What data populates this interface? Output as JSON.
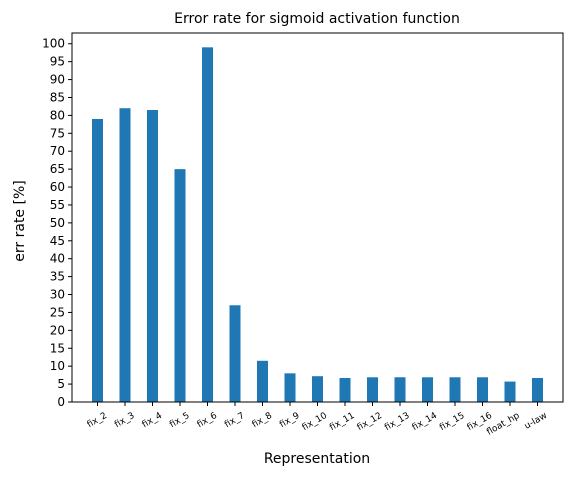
{
  "chart_data": {
    "type": "bar",
    "title": "Error rate for sigmoid activation function",
    "xlabel": "Representation",
    "ylabel": "err rate [%]",
    "categories": [
      "fix_2",
      "fix_3",
      "fix_4",
      "fix_5",
      "fix_6",
      "fix_7",
      "fix_8",
      "fix_9",
      "fix_10",
      "fix_11",
      "fix_12",
      "fix_13",
      "fix_14",
      "fix_15",
      "fix_16",
      "float_hp",
      "u-law"
    ],
    "values": [
      79,
      82,
      81.5,
      65,
      99,
      27,
      11.5,
      8,
      7.2,
      6.7,
      6.9,
      6.9,
      6.9,
      6.9,
      6.9,
      5.7,
      6.7
    ],
    "ylim": [
      0,
      103
    ],
    "yticks": [
      0,
      5,
      10,
      15,
      20,
      25,
      30,
      35,
      40,
      45,
      50,
      55,
      60,
      65,
      70,
      75,
      80,
      85,
      90,
      95,
      100
    ],
    "bar_color": "#1f77b4",
    "grid": false,
    "legend": false
  }
}
